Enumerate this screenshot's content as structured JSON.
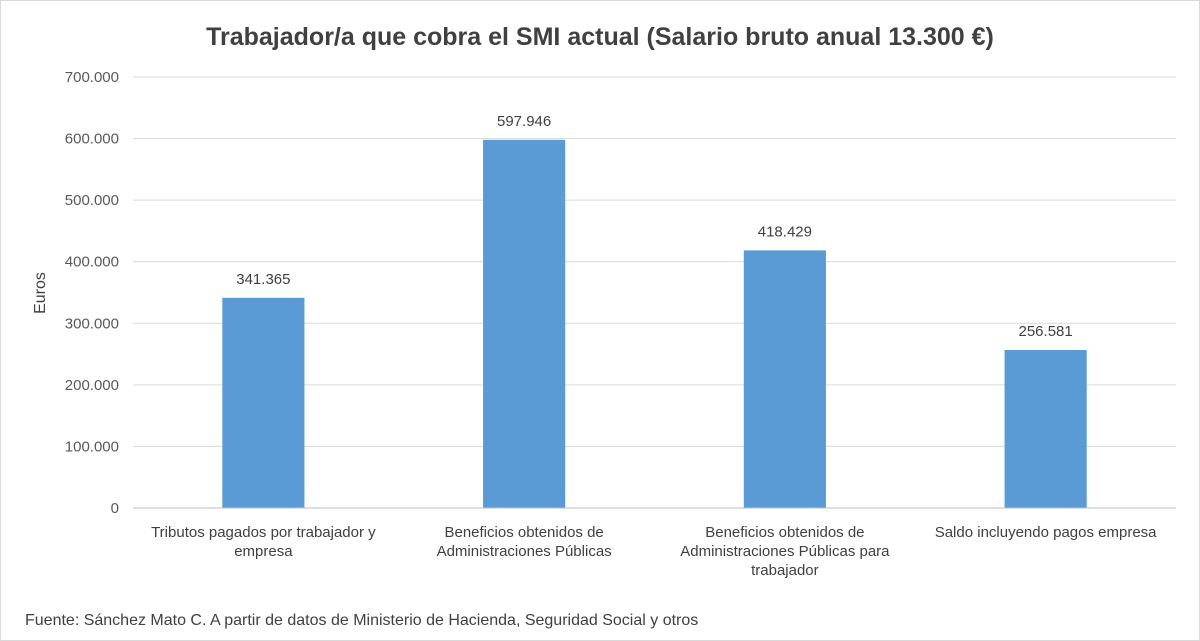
{
  "chart_data": {
    "type": "bar",
    "title": "Trabajador/a que cobra el SMI actual (Salario bruto anual 13.300 €)",
    "xlabel": "",
    "ylabel": "Euros",
    "ylim": [
      0,
      700000
    ],
    "yticks": [
      0,
      100000,
      200000,
      300000,
      400000,
      500000,
      600000,
      700000
    ],
    "ytick_labels": [
      "0",
      "100.000",
      "200.000",
      "300.000",
      "400.000",
      "500.000",
      "600.000",
      "700.000"
    ],
    "grid": true,
    "legend": "none",
    "categories": [
      [
        "Tributos pagados por trabajador y",
        "empresa"
      ],
      [
        "Beneficios obtenidos de",
        "Administraciones Públicas"
      ],
      [
        "Beneficios obtenidos de",
        "Administraciones Públicas para",
        "trabajador"
      ],
      [
        "Saldo incluyendo pagos empresa"
      ]
    ],
    "series": [
      {
        "name": "Euros",
        "values": [
          341365,
          597946,
          418429,
          256581
        ],
        "value_labels": [
          "341.365",
          "597.946",
          "418.429",
          "256.581"
        ]
      }
    ],
    "bar_color": "#5b9bd5",
    "source_note": "Fuente: Sánchez Mato C.  A partir de datos de Ministerio de Hacienda, Seguridad Social y otros"
  }
}
